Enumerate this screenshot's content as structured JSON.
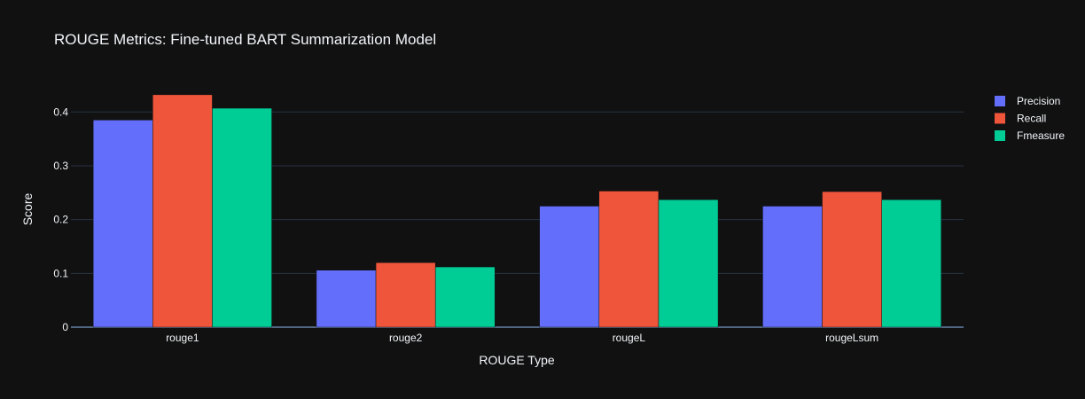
{
  "chart_data": {
    "type": "bar",
    "title": "ROUGE Metrics: Fine-tuned BART Summarization Model",
    "xlabel": "ROUGE Type",
    "ylabel": "Score",
    "categories": [
      "rouge1",
      "rouge2",
      "rougeL",
      "rougeLsum"
    ],
    "series": [
      {
        "name": "Precision",
        "color": "#636efa",
        "values": [
          0.385,
          0.106,
          0.225,
          0.225
        ]
      },
      {
        "name": "Recall",
        "color": "#ef553b",
        "values": [
          0.432,
          0.12,
          0.253,
          0.252
        ]
      },
      {
        "name": "Fmeasure",
        "color": "#00cc96",
        "values": [
          0.407,
          0.112,
          0.237,
          0.237
        ]
      }
    ],
    "ylim": [
      0,
      0.44
    ],
    "yticks": [
      0,
      0.1,
      0.2,
      0.3,
      0.4
    ],
    "ytick_labels": [
      "0",
      "0.1",
      "0.2",
      "0.3",
      "0.4"
    ],
    "grid": true,
    "legend_position": "top-right",
    "background_color": "#111111",
    "grid_color": "#283442",
    "text_color": "#f2f5fa"
  }
}
